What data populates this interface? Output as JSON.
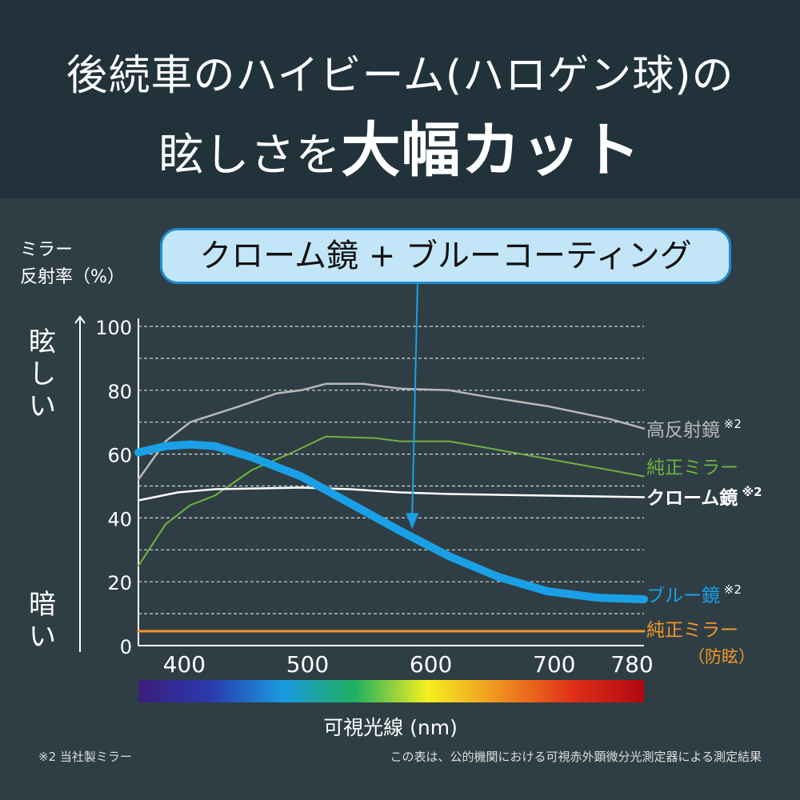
{
  "title": {
    "line1": "後続車のハイビーム(ハロゲン球)の",
    "line2_prefix": "眩しさを",
    "line2_emphasis": "大幅カット"
  },
  "callout": "クローム鏡 + ブルーコーティング",
  "side_labels": {
    "top": "眩しい",
    "bottom": "暗い"
  },
  "footnotes": {
    "left": "※2 当社製ミラー",
    "right": "この表は、公的機関における可視赤外顕微分光測定器による測定結果"
  },
  "chart_data": {
    "type": "line",
    "ylabel": "ミラー\n反射率（%）",
    "xlabel": "可視光線 (nm)",
    "xlim": [
      368,
      778
    ],
    "ylim": [
      0,
      100
    ],
    "xticks": [
      400,
      500,
      600,
      700,
      780
    ],
    "yticks": [
      0,
      20,
      40,
      60,
      80,
      100
    ],
    "grid": "dashed horizontal every 10",
    "series": [
      {
        "name": "高反射鏡",
        "note": "※2",
        "color": "#b8b8b8",
        "x": [
          368,
          390,
          410,
          450,
          480,
          500,
          520,
          550,
          580,
          620,
          650,
          700,
          750,
          778
        ],
        "y": [
          52,
          64,
          70,
          75,
          79,
          80,
          82,
          82,
          80.5,
          80,
          78,
          75,
          71,
          68
        ]
      },
      {
        "name": "純正ミラー",
        "color": "#6db33f",
        "x": [
          368,
          390,
          410,
          430,
          460,
          490,
          520,
          560,
          580,
          620,
          650,
          700,
          750,
          778
        ],
        "y": [
          25,
          38,
          44,
          47,
          55,
          60,
          65.5,
          65,
          64,
          64,
          62,
          58.5,
          55,
          53
        ]
      },
      {
        "name": "クローム鏡",
        "note": "※2",
        "color": "#ffffff",
        "x": [
          368,
          400,
          430,
          500,
          540,
          580,
          620,
          700,
          778
        ],
        "y": [
          45.5,
          48,
          49,
          49.5,
          49,
          48,
          47.5,
          47,
          46.5
        ]
      },
      {
        "name": "ブルー鏡",
        "note": "※2",
        "color": "#1aa0e6",
        "x": [
          368,
          390,
          410,
          430,
          460,
          500,
          540,
          580,
          620,
          660,
          700,
          740,
          778
        ],
        "y": [
          60.5,
          62.5,
          63,
          62.5,
          59,
          53,
          44.5,
          36,
          28,
          21.5,
          17,
          15,
          14.5
        ]
      },
      {
        "name": "純正ミラー",
        "sub": "（防眩）",
        "color": "#f0962a",
        "x": [
          368,
          778
        ],
        "y": [
          4.5,
          4.5
        ]
      }
    ],
    "spectrum_bar": [
      "#3a1e7a",
      "#2a3ab0",
      "#1a9ae0",
      "#20b060",
      "#f5f020",
      "#f09020",
      "#e03018",
      "#b00810"
    ],
    "arrow_to": {
      "x": 590,
      "y": 37
    }
  }
}
